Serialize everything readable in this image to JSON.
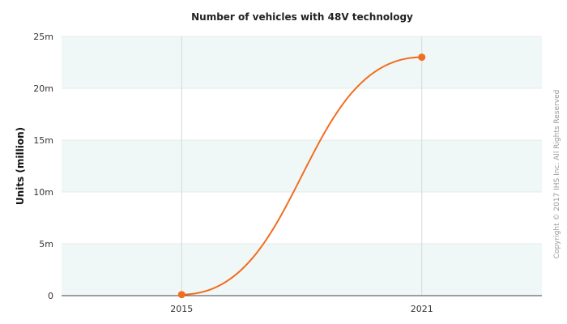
{
  "chart_data": {
    "type": "line",
    "title": "Number of vehicles with 48V technology",
    "xlabel": "",
    "ylabel": "Units (million)",
    "categories": [
      "2015",
      "2021"
    ],
    "series": [
      {
        "name": "Vehicles with 48V technology",
        "values": [
          0.1,
          23
        ],
        "color": "#f26d21"
      }
    ],
    "ylim": [
      0,
      25
    ],
    "yticks": [
      0,
      5,
      10,
      15,
      20,
      25
    ],
    "ytick_labels": [
      "0",
      "5m",
      "10m",
      "15m",
      "20m",
      "25m"
    ],
    "grid": true,
    "band_color": "#f0f8f7",
    "credit": "Copyright © 2017 IHS Inc. All Rights Reserved"
  }
}
